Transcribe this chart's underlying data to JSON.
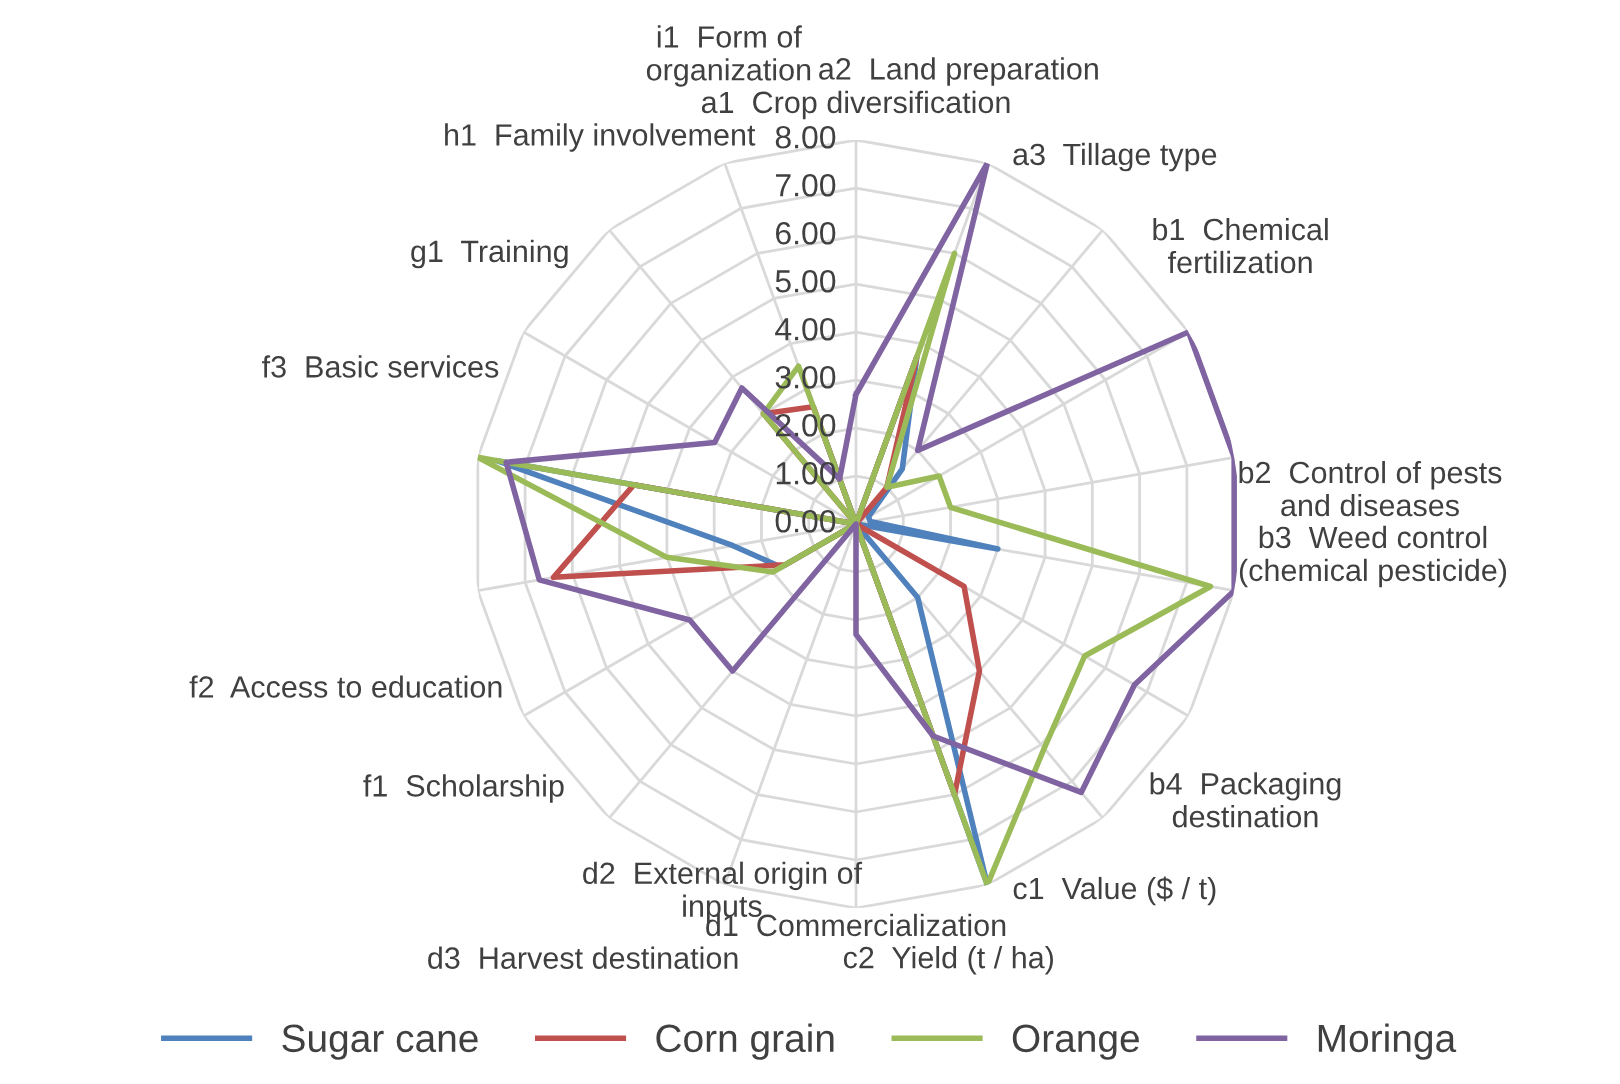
{
  "chart_data": {
    "type": "radar",
    "categories": [
      "a1  Crop diversification",
      "a2  Land preparation",
      "a3  Tillage type",
      "b1  Chemical\nfertilization",
      "b2  Control of pests\nand diseases",
      "b3  Weed control\n(chemical pesticide)",
      "b4  Packaging\ndestination",
      "c1  Value ($ / t)",
      "c2  Yield (t / ha)",
      "d1  Commercialization",
      "d2  External origin of\ninputs",
      "d3  Harvest destination",
      "f1  Scholarship",
      "f2  Access to education",
      "f3  Basic services",
      "g1  Training",
      "h1  Family involvement",
      "i1  Form of\norganization"
    ],
    "series": [
      {
        "name": "Sugar cane",
        "color": "#4f81bd",
        "values": [
          0,
          3.7,
          1.5,
          0.3,
          0.3,
          3.0,
          0,
          2.0,
          8.0,
          0,
          0,
          0,
          1.8,
          2.6,
          7.6,
          0,
          0,
          2.0
        ]
      },
      {
        "name": "Corn grain",
        "color": "#c0504d",
        "values": [
          0,
          3.7,
          1.0,
          0,
          0,
          0,
          2.6,
          4.0,
          6.0,
          0,
          0,
          0,
          1.7,
          6.4,
          4.7,
          0,
          3.0,
          2.6
        ]
      },
      {
        "name": "Orange",
        "color": "#9bbb59",
        "values": [
          0,
          6.0,
          1.0,
          2.0,
          2.0,
          7.5,
          5.5,
          6.1,
          8.0,
          0,
          0,
          0,
          2.0,
          4.0,
          8.0,
          0,
          3.0,
          3.5
        ]
      },
      {
        "name": "Moringa",
        "color": "#8064a2",
        "values": [
          2.7,
          8.0,
          2.0,
          8.0,
          8.0,
          8.0,
          6.7,
          7.3,
          4.7,
          2.3,
          0,
          4.0,
          4.0,
          6.7,
          7.4,
          3.4,
          3.7,
          1.0
        ]
      }
    ],
    "ylim": [
      0,
      8
    ],
    "yticks": [
      {
        "value": 0,
        "label": "0.00"
      },
      {
        "value": 1,
        "label": "1.00"
      },
      {
        "value": 2,
        "label": "2.00"
      },
      {
        "value": 3,
        "label": "3.00"
      },
      {
        "value": 4,
        "label": "4.00"
      },
      {
        "value": 5,
        "label": "5.00"
      },
      {
        "value": 6,
        "label": "6.00"
      },
      {
        "value": 7,
        "label": "7.00"
      },
      {
        "value": 8,
        "label": "8.00"
      }
    ],
    "grid": true,
    "legend": "bottom"
  }
}
